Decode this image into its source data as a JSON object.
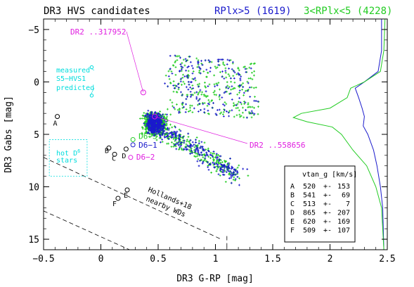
{
  "chart_data": {
    "type": "scatter",
    "title": "DR3 HVS candidates",
    "xlabel": "DR3 G-RP [mag]",
    "ylabel": "DR3 Gabs [mag]",
    "xlim": [
      -0.5,
      2.5
    ],
    "ylim": [
      16,
      -6
    ],
    "x_ticks": [
      -0.5,
      0,
      0.5,
      1,
      1.5,
      2,
      2.5
    ],
    "x_tick_labels": [
      "−0.5",
      "0",
      "0.5",
      "1",
      "1.5",
      "2",
      "2.5"
    ],
    "y_ticks": [
      -5,
      0,
      5,
      10,
      15
    ],
    "y_tick_labels": [
      "−5",
      "0",
      "5",
      "10",
      "15"
    ],
    "legend": [
      {
        "label": "RPlx>5 (1619)",
        "color": "#1a1acc"
      },
      {
        "label": "3<RPlx<5 (4228)",
        "color": "#22cc22"
      }
    ],
    "series": [
      {
        "name": "RPlx>5 (1619)",
        "color": "#1a1acc",
        "count": 1619
      },
      {
        "name": "3<RPlx<5 (4228)",
        "color": "#22cc22",
        "count": 4228
      }
    ],
    "marked_stars": [
      {
        "label": "DR2 ..317952",
        "x": 0.37,
        "y": 1.0,
        "color": "#e020e0"
      },
      {
        "label": "DR2 ..558656",
        "x": 0.47,
        "y": 3.3,
        "color": "#e020e0"
      }
    ],
    "candidates": [
      {
        "label": "A",
        "x": -0.38,
        "y": 3.3,
        "color": "#000000"
      },
      {
        "label": "B",
        "x": 0.07,
        "y": 6.3,
        "color": "#000000"
      },
      {
        "label": "C",
        "x": 0.12,
        "y": 6.9,
        "color": "#000000"
      },
      {
        "label": "D",
        "x": 0.22,
        "y": 6.4,
        "color": "#000000"
      },
      {
        "label": "E",
        "x": 0.23,
        "y": 10.3,
        "color": "#000000"
      },
      {
        "label": "F",
        "x": 0.15,
        "y": 11.1,
        "color": "#000000"
      }
    ],
    "d6_stars": [
      {
        "label": "D6−3",
        "x": 0.28,
        "y": 5.5,
        "color": "#22cc22"
      },
      {
        "label": "D6−1",
        "x": 0.28,
        "y": 6.0,
        "color": "#1a1acc"
      },
      {
        "label": "D6−2",
        "x": 0.26,
        "y": 7.2,
        "color": "#e020e0"
      }
    ],
    "s5_hvs1": {
      "measured_label": "measured",
      "name_label": "S5−HVS1",
      "predicted_label": "predicted",
      "measured": {
        "x": -0.08,
        "y": -1.4
      },
      "predicted": {
        "x": -0.08,
        "y": 1.3
      },
      "color": "#00dddd"
    },
    "hot_d6_box": {
      "label_line1": "hot D",
      "label_sup": "6",
      "label_line2": "stars",
      "x": [
        -0.45,
        -0.12
      ],
      "y": [
        5.5,
        9.0
      ],
      "color": "#00dddd"
    },
    "hollands_band": {
      "label_line1": "Hollands+18",
      "label_line2": "nearby WDs",
      "upper_line": [
        [
          -0.5,
          7.2
        ],
        [
          1.05,
          15.0
        ]
      ],
      "lower_line": [
        [
          -0.5,
          12.3
        ],
        [
          0.25,
          16.0
        ]
      ],
      "right_edge": [
        [
          1.1,
          14.7
        ],
        [
          1.1,
          16.0
        ]
      ]
    },
    "vtan_table": {
      "header": "vtan_g [km/s]",
      "rows": [
        {
          "id": "A",
          "value": "520",
          "err": "153"
        },
        {
          "id": "B",
          "value": "541",
          "err": "69"
        },
        {
          "id": "C",
          "value": "513",
          "err": "7"
        },
        {
          "id": "D",
          "value": "865",
          "err": "207"
        },
        {
          "id": "E",
          "value": "620",
          "err": "169"
        },
        {
          "id": "F",
          "value": "509",
          "err": "107"
        }
      ],
      "pm_sign": "+-"
    },
    "histograms": {
      "blue_color": "#1a1acc",
      "green_color": "#22cc22",
      "blue": [
        [
          -6,
          2.45
        ],
        [
          -3,
          2.45
        ],
        [
          -1,
          2.42
        ],
        [
          0,
          2.3
        ],
        [
          0.6,
          2.22
        ],
        [
          1.5,
          2.25
        ],
        [
          2.5,
          2.28
        ],
        [
          3.3,
          2.3
        ],
        [
          4.2,
          2.29
        ],
        [
          5,
          2.33
        ],
        [
          6.5,
          2.38
        ],
        [
          8,
          2.41
        ],
        [
          10,
          2.44
        ],
        [
          12,
          2.46
        ],
        [
          16,
          2.47
        ]
      ],
      "green": [
        [
          -6,
          2.48
        ],
        [
          -3,
          2.47
        ],
        [
          -1,
          2.44
        ],
        [
          0,
          2.3
        ],
        [
          0.6,
          2.18
        ],
        [
          1.5,
          2.15
        ],
        [
          2.5,
          2.0
        ],
        [
          3.0,
          1.75
        ],
        [
          3.4,
          1.68
        ],
        [
          3.8,
          1.8
        ],
        [
          4.3,
          2.02
        ],
        [
          5,
          2.1
        ],
        [
          6.5,
          2.2
        ],
        [
          8,
          2.32
        ],
        [
          10,
          2.4
        ],
        [
          12,
          2.45
        ],
        [
          16,
          2.47
        ]
      ]
    }
  }
}
